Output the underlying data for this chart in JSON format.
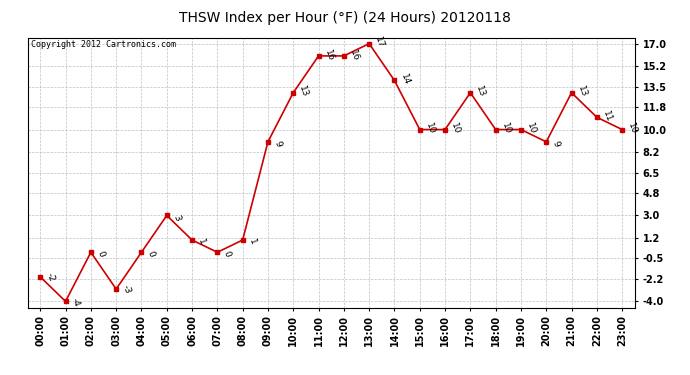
{
  "title": "THSW Index per Hour (°F) (24 Hours) 20120118",
  "copyright": "Copyright 2012 Cartronics.com",
  "hours": [
    0,
    1,
    2,
    3,
    4,
    5,
    6,
    7,
    8,
    9,
    10,
    11,
    12,
    13,
    14,
    15,
    16,
    17,
    18,
    19,
    20,
    21,
    22,
    23
  ],
  "x_labels": [
    "00:00",
    "01:00",
    "02:00",
    "03:00",
    "04:00",
    "05:00",
    "06:00",
    "07:00",
    "08:00",
    "09:00",
    "10:00",
    "11:00",
    "12:00",
    "13:00",
    "14:00",
    "15:00",
    "16:00",
    "17:00",
    "18:00",
    "19:00",
    "20:00",
    "21:00",
    "22:00",
    "23:00"
  ],
  "values": [
    -2,
    -4,
    0,
    -3,
    0,
    3,
    1,
    0,
    1,
    9,
    13,
    16,
    16,
    17,
    14,
    10,
    10,
    13,
    10,
    10,
    9,
    13,
    11,
    10
  ],
  "yticks": [
    17.0,
    15.2,
    13.5,
    11.8,
    10.0,
    8.2,
    6.5,
    4.8,
    3.0,
    1.2,
    -0.5,
    -2.2,
    -4.0
  ],
  "ylim": [
    -4.5,
    17.5
  ],
  "line_color": "#cc0000",
  "marker_color": "#cc0000",
  "bg_color": "#ffffff",
  "plot_bg_color": "#ffffff",
  "grid_color": "#c0c0c0",
  "title_fontsize": 10,
  "tick_fontsize": 7,
  "copyright_fontsize": 6,
  "annot_fontsize": 6.5
}
